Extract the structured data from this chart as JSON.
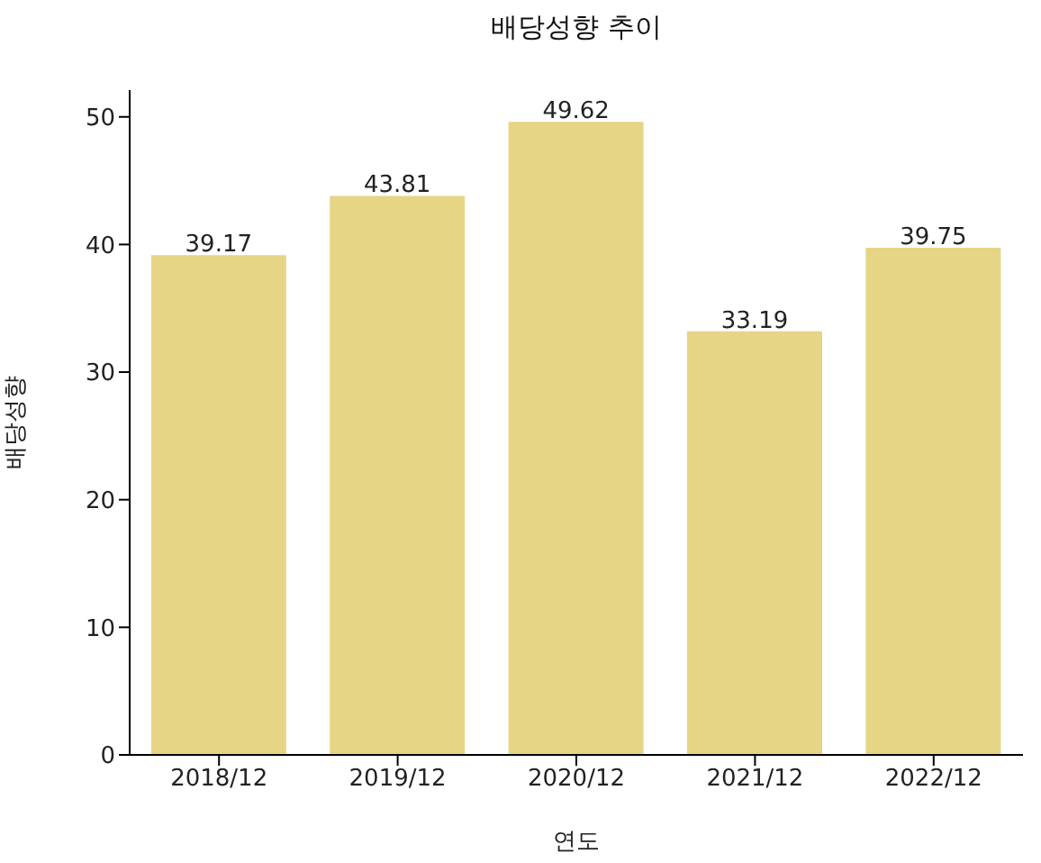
{
  "chart_data": {
    "type": "bar",
    "title": "배당성향 추이",
    "xlabel": "연도",
    "ylabel": "배당성향",
    "categories": [
      "2018/12",
      "2019/12",
      "2020/12",
      "2021/12",
      "2022/12"
    ],
    "values": [
      39.17,
      43.81,
      49.62,
      33.19,
      39.75
    ],
    "color": "#e5d585",
    "ylim": [
      0,
      52.1
    ],
    "yticks": [
      0,
      10,
      20,
      30,
      40,
      50
    ],
    "data_labels": true
  }
}
